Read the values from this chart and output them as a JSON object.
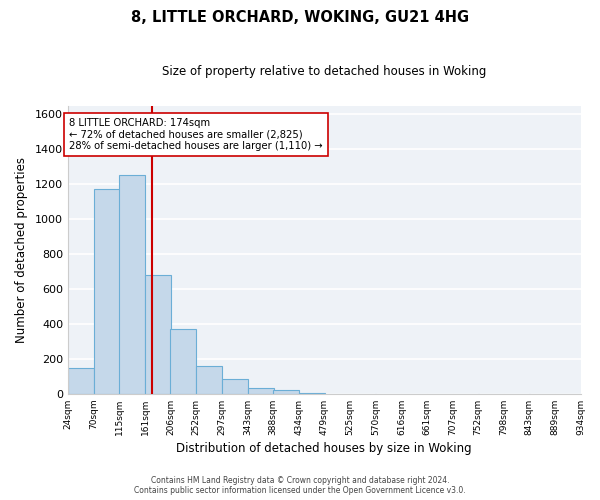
{
  "title": "8, LITTLE ORCHARD, WOKING, GU21 4HG",
  "subtitle": "Size of property relative to detached houses in Woking",
  "xlabel": "Distribution of detached houses by size in Woking",
  "ylabel": "Number of detached properties",
  "bar_values": [
    150,
    1170,
    1255,
    680,
    370,
    160,
    85,
    35,
    20,
    5,
    0,
    0,
    0,
    0,
    0,
    0,
    0,
    0,
    0,
    0
  ],
  "bin_edges": [
    24,
    70,
    115,
    161,
    206,
    252,
    297,
    343,
    388,
    434,
    479,
    525,
    570,
    616,
    661,
    707,
    752,
    798,
    843,
    889,
    934
  ],
  "tick_labels": [
    "24sqm",
    "70sqm",
    "115sqm",
    "161sqm",
    "206sqm",
    "252sqm",
    "297sqm",
    "343sqm",
    "388sqm",
    "434sqm",
    "479sqm",
    "525sqm",
    "570sqm",
    "616sqm",
    "661sqm",
    "707sqm",
    "752sqm",
    "798sqm",
    "843sqm",
    "889sqm",
    "934sqm"
  ],
  "bar_color": "#c5d8ea",
  "bar_edge_color": "#6baed6",
  "vline_x": 174,
  "vline_color": "#cc0000",
  "annotation_text": "8 LITTLE ORCHARD: 174sqm\n← 72% of detached houses are smaller (2,825)\n28% of semi-detached houses are larger (1,110) →",
  "annotation_box_edge": "#cc0000",
  "annotation_box_face": "#ffffff",
  "ylim": [
    0,
    1650
  ],
  "yticks": [
    0,
    200,
    400,
    600,
    800,
    1000,
    1200,
    1400,
    1600
  ],
  "background_color": "#ffffff",
  "plot_bg_color": "#eef2f7",
  "grid_color": "#ffffff",
  "footer_line1": "Contains HM Land Registry data © Crown copyright and database right 2024.",
  "footer_line2": "Contains public sector information licensed under the Open Government Licence v3.0."
}
